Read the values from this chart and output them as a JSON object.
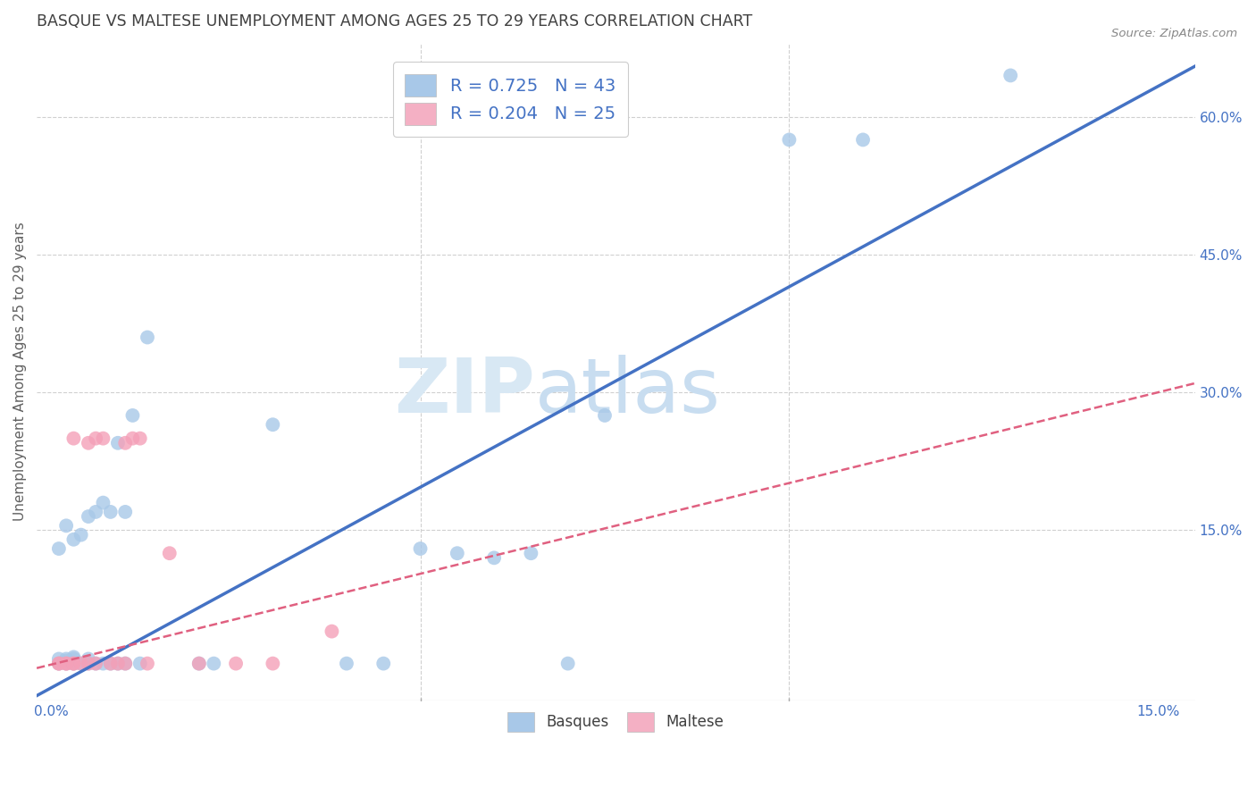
{
  "title": "BASQUE VS MALTESE UNEMPLOYMENT AMONG AGES 25 TO 29 YEARS CORRELATION CHART",
  "source": "Source: ZipAtlas.com",
  "ylabel": "Unemployment Among Ages 25 to 29 years",
  "xlim": [
    -0.002,
    0.155
  ],
  "ylim": [
    -0.035,
    0.68
  ],
  "xtick_positions": [
    0.0,
    0.15
  ],
  "xtick_labels": [
    "0.0%",
    "15.0%"
  ],
  "xtick_minor_positions": [
    0.05,
    0.1
  ],
  "yticks_right": [
    0.15,
    0.3,
    0.45,
    0.6
  ],
  "ytick_labels_right": [
    "15.0%",
    "30.0%",
    "45.0%",
    "60.0%"
  ],
  "basques_color": "#a8c8e8",
  "basques_line_color": "#4472c4",
  "maltese_color": "#f4a0b8",
  "maltese_line_color": "#e06080",
  "legend_basques_color": "#a8c8e8",
  "legend_maltese_color": "#f4b0c4",
  "R_basques": 0.725,
  "N_basques": 43,
  "R_maltese": 0.204,
  "N_maltese": 25,
  "basques_x": [
    0.001,
    0.001,
    0.001,
    0.002,
    0.002,
    0.002,
    0.002,
    0.003,
    0.003,
    0.003,
    0.003,
    0.004,
    0.004,
    0.005,
    0.005,
    0.005,
    0.006,
    0.006,
    0.007,
    0.007,
    0.008,
    0.008,
    0.009,
    0.009,
    0.01,
    0.01,
    0.011,
    0.012,
    0.013,
    0.02,
    0.022,
    0.03,
    0.04,
    0.045,
    0.05,
    0.055,
    0.06,
    0.065,
    0.07,
    0.075,
    0.1,
    0.11,
    0.13
  ],
  "basques_y": [
    0.005,
    0.01,
    0.13,
    0.005,
    0.008,
    0.01,
    0.155,
    0.005,
    0.01,
    0.012,
    0.14,
    0.005,
    0.145,
    0.005,
    0.01,
    0.165,
    0.17,
    0.005,
    0.18,
    0.005,
    0.17,
    0.005,
    0.245,
    0.005,
    0.005,
    0.17,
    0.275,
    0.005,
    0.36,
    0.005,
    0.005,
    0.265,
    0.005,
    0.005,
    0.13,
    0.125,
    0.12,
    0.125,
    0.005,
    0.275,
    0.575,
    0.575,
    0.645
  ],
  "maltese_x": [
    0.001,
    0.001,
    0.002,
    0.002,
    0.003,
    0.003,
    0.003,
    0.004,
    0.005,
    0.005,
    0.006,
    0.006,
    0.007,
    0.008,
    0.009,
    0.01,
    0.01,
    0.011,
    0.012,
    0.013,
    0.016,
    0.02,
    0.025,
    0.03,
    0.038
  ],
  "maltese_y": [
    0.005,
    0.005,
    0.005,
    0.005,
    0.005,
    0.005,
    0.25,
    0.005,
    0.005,
    0.245,
    0.005,
    0.25,
    0.25,
    0.005,
    0.005,
    0.005,
    0.245,
    0.25,
    0.25,
    0.005,
    0.125,
    0.005,
    0.005,
    0.005,
    0.04
  ],
  "basques_line_x": [
    -0.002,
    0.155
  ],
  "basques_line_y": [
    -0.03,
    0.655
  ],
  "maltese_line_x": [
    -0.002,
    0.155
  ],
  "maltese_line_y": [
    0.0,
    0.31
  ],
  "watermark_zip": "ZIP",
  "watermark_atlas": "atlas",
  "background_color": "#ffffff",
  "grid_color": "#d0d0d0",
  "title_color": "#404040",
  "axis_color": "#4472c4",
  "label_color": "#606060"
}
